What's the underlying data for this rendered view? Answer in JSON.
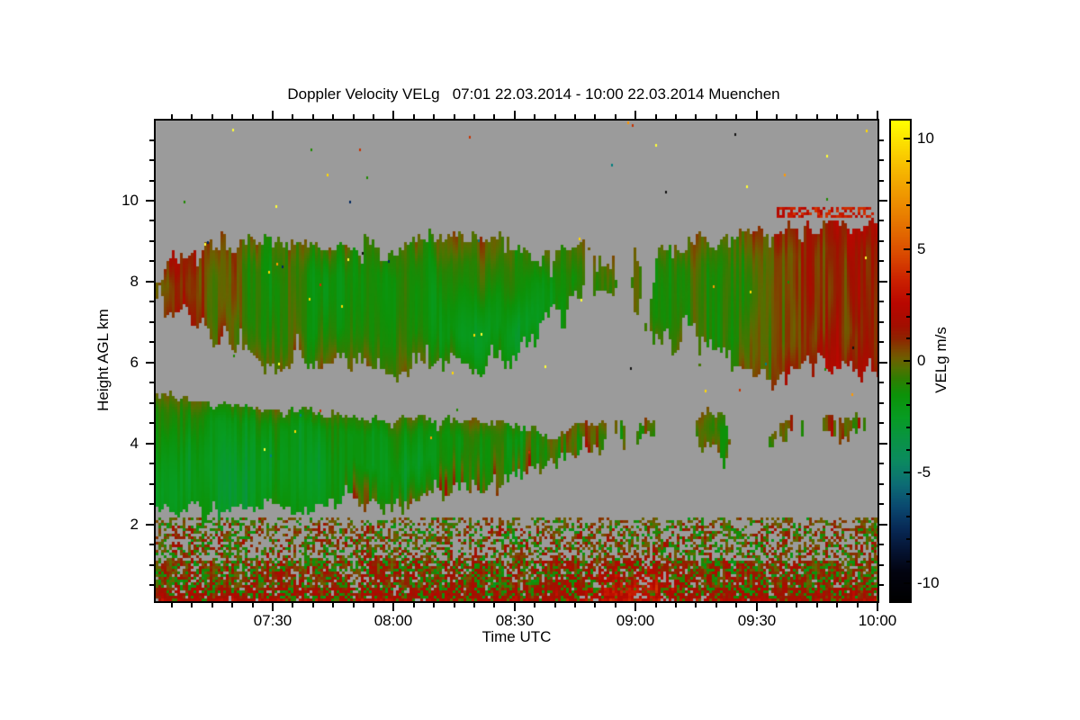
{
  "chart_data": {
    "type": "heatmap",
    "title": "Doppler Velocity VELg   07:01 22.03.2014 - 10:00 22.03.2014 Muenchen",
    "xlabel": "Time UTC",
    "ylabel": "Height AGL km",
    "x_range_minutes": [
      421,
      600
    ],
    "x_major_ticks": [
      {
        "minute": 450,
        "label": "07:30"
      },
      {
        "minute": 480,
        "label": "08:00"
      },
      {
        "minute": 510,
        "label": "08:30"
      },
      {
        "minute": 540,
        "label": "09:00"
      },
      {
        "minute": 570,
        "label": "09:30"
      },
      {
        "minute": 600,
        "label": "10:00"
      }
    ],
    "x_minor_step_minutes": 5,
    "y_range_km": [
      0.1,
      11.98
    ],
    "y_major_ticks": [
      2,
      4,
      6,
      8,
      10
    ],
    "y_minor_step_km": 0.5,
    "no_data_color": "#9b9b9b",
    "grid": false,
    "colorbar": {
      "label": "VELg m/s",
      "range": [
        -10.8,
        10.8
      ],
      "major_ticks": [
        10,
        5,
        0,
        -5,
        -10
      ],
      "minor_step": 1,
      "stops": [
        [
          -10.8,
          "#000000"
        ],
        [
          -9.5,
          "#02030f"
        ],
        [
          -8.5,
          "#051433"
        ],
        [
          -7.5,
          "#072a57"
        ],
        [
          -6.5,
          "#0a4a70"
        ],
        [
          -5.5,
          "#0c6d74"
        ],
        [
          -4.5,
          "#0b8a60"
        ],
        [
          -3.5,
          "#099344"
        ],
        [
          -2.5,
          "#079c22"
        ],
        [
          -1.5,
          "#0c9208"
        ],
        [
          -0.8,
          "#2e7e02"
        ],
        [
          -0.3,
          "#527101"
        ],
        [
          0.1,
          "#6c6000"
        ],
        [
          0.5,
          "#7d4800"
        ],
        [
          1.0,
          "#8e2500"
        ],
        [
          1.6,
          "#a30e00"
        ],
        [
          2.6,
          "#b90700"
        ],
        [
          3.6,
          "#ca2000"
        ],
        [
          4.6,
          "#d74300"
        ],
        [
          5.6,
          "#e16300"
        ],
        [
          6.6,
          "#e98000"
        ],
        [
          7.6,
          "#f09b00"
        ],
        [
          8.6,
          "#f6b800"
        ],
        [
          9.6,
          "#fbd800"
        ],
        [
          10.8,
          "#ffff00"
        ]
      ]
    },
    "regions": {
      "surface_top_km": 2.25,
      "upper_band": {
        "mean_velocity": -0.85,
        "top_km": [
          [
            421,
            8.25
          ],
          [
            430,
            8.75
          ],
          [
            442,
            8.9
          ],
          [
            455,
            9.05
          ],
          [
            468,
            8.8
          ],
          [
            480,
            8.95
          ],
          [
            492,
            9.1
          ],
          [
            505,
            9.15
          ],
          [
            514,
            8.65
          ],
          [
            524,
            8.85
          ],
          [
            533,
            8.45
          ],
          [
            541,
            8.95
          ],
          [
            551,
            9.0
          ],
          [
            561,
            9.05
          ],
          [
            572,
            9.2
          ],
          [
            584,
            9.35
          ],
          [
            600,
            9.45
          ]
        ],
        "bottom_km": [
          [
            421,
            7.35
          ],
          [
            431,
            6.9
          ],
          [
            441,
            6.35
          ],
          [
            451,
            5.95
          ],
          [
            461,
            6.15
          ],
          [
            471,
            5.85
          ],
          [
            481,
            5.8
          ],
          [
            491,
            6.0
          ],
          [
            499,
            5.85
          ],
          [
            507,
            6.05
          ],
          [
            515,
            6.45
          ],
          [
            525,
            7.05
          ],
          [
            534,
            7.3
          ],
          [
            543,
            6.8
          ],
          [
            551,
            6.3
          ],
          [
            559,
            6.15
          ],
          [
            566,
            5.7
          ],
          [
            575,
            5.6
          ],
          [
            583,
            5.95
          ],
          [
            591,
            5.8
          ],
          [
            600,
            5.75
          ]
        ],
        "gaps": [
          {
            "t_center": 533,
            "t_sigma": 7,
            "h_center": 7.2,
            "h_sigma": 1.1,
            "strength": 0.42
          },
          {
            "t_center": 524,
            "t_sigma": 8,
            "h_center": 6.2,
            "h_sigma": 0.7,
            "strength": 0.35
          },
          {
            "t_center": 558,
            "t_sigma": 6,
            "h_center": 6.2,
            "h_sigma": 0.6,
            "strength": 0.3
          },
          {
            "t_center": 545,
            "t_sigma": 6,
            "h_center": 8.8,
            "h_sigma": 0.9,
            "strength": 0.3
          },
          {
            "t_center": 430,
            "t_sigma": 6,
            "h_center": 6.1,
            "h_sigma": 0.8,
            "strength": 0.4
          }
        ],
        "green_core": {
          "t_center": 506,
          "t_sigma": 13,
          "h_center": 6.6,
          "h_sigma": 0.8,
          "depth": 1.5
        },
        "edge_warm": 1.9,
        "right_warm": {
          "t_start": 558,
          "boost": 2.4
        },
        "left_warm": {
          "t_end": 452,
          "boost": 1.2
        }
      },
      "lower_band": {
        "mean_velocity": -1.25,
        "top_km": [
          [
            421,
            5.2
          ],
          [
            432,
            5.05
          ],
          [
            444,
            4.9
          ],
          [
            456,
            4.8
          ],
          [
            468,
            4.7
          ],
          [
            480,
            4.62
          ],
          [
            492,
            4.6
          ],
          [
            504,
            4.55
          ],
          [
            512,
            4.45
          ],
          [
            519,
            4.15
          ],
          [
            527,
            4.55
          ],
          [
            536,
            4.5
          ],
          [
            544,
            4.65
          ],
          [
            551,
            4.55
          ],
          [
            558,
            4.75
          ],
          [
            564,
            4.55
          ],
          [
            570,
            3.95
          ],
          [
            576,
            4.55
          ],
          [
            583,
            4.7
          ],
          [
            591,
            4.6
          ],
          [
            600,
            4.7
          ]
        ],
        "bottom_km": [
          [
            421,
            2.45
          ],
          [
            434,
            2.3
          ],
          [
            446,
            2.5
          ],
          [
            458,
            2.35
          ],
          [
            470,
            2.55
          ],
          [
            480,
            2.45
          ],
          [
            490,
            2.7
          ],
          [
            500,
            2.9
          ],
          [
            508,
            3.1
          ],
          [
            516,
            3.45
          ],
          [
            524,
            3.75
          ],
          [
            532,
            3.95
          ],
          [
            540,
            4.05
          ],
          [
            548,
            3.95
          ],
          [
            555,
            4.15
          ],
          [
            562,
            3.5
          ],
          [
            569,
            3.7
          ],
          [
            576,
            4.15
          ],
          [
            583,
            4.2
          ],
          [
            591,
            4.1
          ],
          [
            600,
            4.2
          ]
        ],
        "gaps": [
          {
            "t_center": 549.5,
            "t_sigma": 2.5,
            "strength": 0.5
          },
          {
            "t_center": 566.5,
            "t_sigma": 2.5,
            "strength": 0.5
          },
          {
            "t_center": 585,
            "t_sigma": 1.5,
            "strength": 0.3
          }
        ],
        "patchy_after": 516,
        "green_core": {
          "t_center": 455,
          "t_sigma": 35,
          "h_center": 3.3,
          "h_sigma": 0.95,
          "depth": 1.1
        },
        "top_fringe": {
          "boost": 2.3,
          "depth_km": 0.4
        },
        "bottom_streaks": {
          "t_start": 468,
          "boost": 2.6,
          "depth_km": 0.9
        }
      },
      "high_streak": {
        "t_range": [
          575,
          599
        ],
        "h_range": [
          9.55,
          9.85
        ],
        "fill": 0.55,
        "mean_velocity": 3.2
      },
      "surface_layers": [
        {
          "h_range": [
            1.95,
            2.18
          ],
          "fill": 0.4,
          "mean_velocity": 0.3,
          "spread": 1.1,
          "green_fraction": 0.18
        },
        {
          "h_range": [
            1.08,
            1.95
          ],
          "fill": 0.52,
          "mean_velocity": 0.7,
          "spread": 1.7,
          "green_fraction": 0.3
        },
        {
          "h_range": [
            0.45,
            1.08
          ],
          "fill": 0.86,
          "mean_velocity": 1.0,
          "spread": 1.6,
          "green_fraction": 0.28
        },
        {
          "h_range": [
            0.1,
            0.45
          ],
          "fill": 0.97,
          "mean_velocity": 1.5,
          "spread": 1.3,
          "green_fraction": 0.22
        }
      ],
      "hot_spot": {
        "t_center": 540,
        "t_sigma": 9,
        "h_center": 0.45,
        "h_sigma": 0.3,
        "velocity_boost": 1.7
      },
      "speckles": {
        "count": 60,
        "colors": [
          "#ff9900",
          "#ffd700",
          "#ffff33",
          "#00285e",
          "#101010",
          "#008080",
          "#1e8a00",
          "#c83200"
        ]
      }
    }
  }
}
